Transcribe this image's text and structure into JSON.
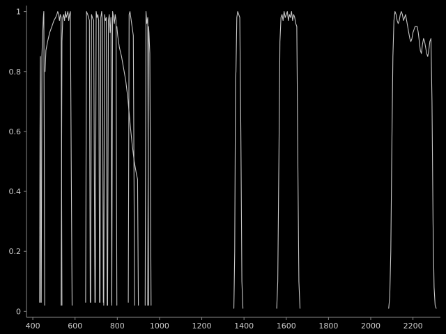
{
  "chart_data": {
    "type": "line",
    "title": "",
    "xlabel": "",
    "ylabel": "",
    "xlim": [
      370,
      2330
    ],
    "ylim": [
      -0.02,
      1.02
    ],
    "grid": false,
    "legend": "none",
    "background_color": "#000000",
    "axis_color": "#8a8a8a",
    "line_color": "#c8c8c8",
    "x_ticks": [
      400,
      600,
      800,
      1000,
      1200,
      1400,
      1600,
      1800,
      2000,
      2200
    ],
    "y_ticks": [
      0,
      0.2,
      0.4,
      0.6,
      0.8,
      1
    ],
    "x_tick_labels": [
      "400",
      "600",
      "800",
      "1000",
      "1200",
      "1400",
      "1600",
      "1800",
      "2000",
      "2200"
    ],
    "y_tick_labels": [
      "0",
      "0.2",
      "0.4",
      "0.6",
      "0.8",
      "1"
    ],
    "series": [
      {
        "x": [
          432,
          434,
          436,
          438
        ],
        "y": [
          0.03,
          0.6,
          0.85,
          0.03
        ]
      },
      {
        "x": [
          440,
          443,
          447,
          450,
          452,
          454,
          456
        ],
        "y": [
          0.03,
          0.85,
          0.93,
          0.98,
          1.0,
          0.6,
          0.02
        ]
      },
      {
        "x": [
          458,
          462,
          470,
          480,
          490,
          500,
          508,
          514,
          518,
          522,
          526,
          530,
          534,
          538
        ],
        "y": [
          0.8,
          0.87,
          0.9,
          0.93,
          0.95,
          0.97,
          0.98,
          0.99,
          1.0,
          0.99,
          0.97,
          0.99,
          0.98,
          0.02
        ]
      },
      {
        "x": [
          534,
          538,
          542,
          546,
          550,
          554,
          558,
          562,
          566,
          570,
          574,
          578,
          582,
          586
        ],
        "y": [
          0.02,
          0.9,
          0.98,
          0.99,
          0.97,
          1.0,
          0.98,
          0.99,
          1.0,
          0.97,
          0.99,
          1.0,
          0.5,
          0.02
        ]
      },
      {
        "x": [
          650,
          654,
          660,
          664,
          668,
          672
        ],
        "y": [
          0.03,
          1.0,
          0.99,
          0.98,
          0.97,
          0.03
        ]
      },
      {
        "x": [
          674,
          678,
          682,
          688,
          694
        ],
        "y": [
          0.03,
          0.99,
          0.98,
          0.97,
          0.03
        ]
      },
      {
        "x": [
          696,
          700,
          704,
          708,
          712,
          716
        ],
        "y": [
          0.03,
          1.0,
          0.98,
          0.99,
          0.97,
          0.03
        ]
      },
      {
        "x": [
          718,
          722,
          726,
          730,
          734
        ],
        "y": [
          0.03,
          0.98,
          1.0,
          0.96,
          0.03
        ]
      },
      {
        "x": [
          736,
          740,
          744,
          748,
          752
        ],
        "y": [
          0.02,
          0.99,
          0.97,
          0.98,
          0.02
        ]
      },
      {
        "x": [
          754,
          758,
          762,
          766,
          770,
          774
        ],
        "y": [
          0.02,
          0.97,
          0.99,
          0.93,
          0.98,
          0.02
        ]
      },
      {
        "x": [
          774,
          778,
          782,
          786,
          790,
          794,
          798
        ],
        "y": [
          0.03,
          1.0,
          0.98,
          0.96,
          0.99,
          0.97,
          0.02
        ]
      },
      {
        "x": [
          798,
          802,
          806,
          810,
          820,
          830,
          840,
          850,
          860,
          870,
          880,
          890,
          896,
          900
        ],
        "y": [
          0.95,
          0.92,
          0.9,
          0.88,
          0.85,
          0.81,
          0.77,
          0.71,
          0.63,
          0.56,
          0.5,
          0.46,
          0.44,
          0.02
        ]
      },
      {
        "x": [
          852,
          856,
          860,
          864,
          870,
          876,
          882
        ],
        "y": [
          0.03,
          0.99,
          1.0,
          0.98,
          0.95,
          0.92,
          0.02
        ]
      },
      {
        "x": [
          932,
          936,
          940,
          944,
          948
        ],
        "y": [
          0.02,
          1.0,
          0.96,
          0.98,
          0.02
        ]
      },
      {
        "x": [
          944,
          948,
          950,
          954,
          960
        ],
        "y": [
          0.02,
          0.95,
          0.93,
          0.86,
          0.02
        ]
      },
      {
        "x": [
          1352,
          1356,
          1360,
          1362,
          1366,
          1370,
          1375,
          1380,
          1385,
          1390,
          1395
        ],
        "y": [
          0.01,
          0.2,
          0.78,
          0.8,
          0.98,
          1.0,
          0.99,
          0.98,
          0.6,
          0.1,
          0.01
        ]
      },
      {
        "x": [
          1555,
          1560,
          1565,
          1570,
          1575,
          1580,
          1585,
          1590,
          1595,
          1600,
          1605,
          1610,
          1615,
          1620,
          1625,
          1630,
          1635,
          1640,
          1645,
          1650,
          1655,
          1660,
          1665
        ],
        "y": [
          0.01,
          0.1,
          0.5,
          0.9,
          0.98,
          0.99,
          0.97,
          1.0,
          0.98,
          0.99,
          1.0,
          0.97,
          0.99,
          0.98,
          1.0,
          0.97,
          0.99,
          0.98,
          0.96,
          0.95,
          0.5,
          0.1,
          0.01
        ]
      },
      {
        "x": [
          2085,
          2090,
          2095,
          2100,
          2105,
          2110,
          2115,
          2120,
          2125,
          2130,
          2135,
          2140,
          2145,
          2150,
          2155,
          2160,
          2165,
          2170,
          2175,
          2180,
          2185,
          2190,
          2195,
          2200,
          2205,
          2210,
          2215,
          2220,
          2225,
          2230,
          2235,
          2240,
          2245,
          2250,
          2255,
          2260,
          2265,
          2270,
          2275,
          2280,
          2285,
          2290,
          2295,
          2300,
          2305,
          2310
        ],
        "y": [
          0.01,
          0.05,
          0.2,
          0.55,
          0.85,
          0.97,
          1.0,
          0.99,
          0.97,
          0.96,
          0.97,
          0.99,
          1.0,
          0.99,
          0.97,
          0.98,
          0.99,
          0.97,
          0.95,
          0.93,
          0.91,
          0.9,
          0.91,
          0.93,
          0.94,
          0.95,
          0.95,
          0.95,
          0.93,
          0.9,
          0.87,
          0.86,
          0.89,
          0.91,
          0.9,
          0.88,
          0.86,
          0.85,
          0.87,
          0.9,
          0.91,
          0.7,
          0.3,
          0.08,
          0.02,
          0.01
        ]
      }
    ]
  }
}
